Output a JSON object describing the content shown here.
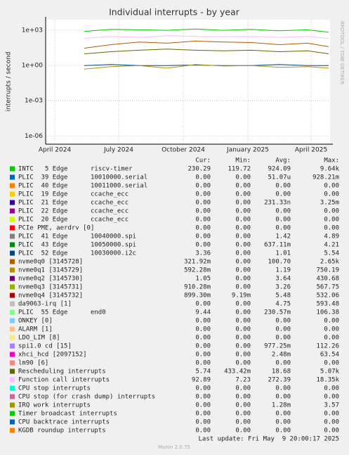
{
  "chart_data": {
    "type": "line",
    "title": "Individual interrupts - by year",
    "ylabel": "interrupts / second",
    "watermark": "RRDTOOL / TOBI OETIKER",
    "log_scale": true,
    "grid": true,
    "ylim": [
      2e-07,
      8000
    ],
    "yticks": [
      {
        "value": 1000,
        "label": "1e+03"
      },
      {
        "value": 1,
        "label": "1e+00"
      },
      {
        "value": 0.001,
        "label": "1e-03"
      },
      {
        "value": 1e-06,
        "label": "1e-06"
      }
    ],
    "xlim": [
      -13,
      392
    ],
    "xticks": [
      {
        "value": 0,
        "label": "April 2024"
      },
      {
        "value": 91,
        "label": "July 2024"
      },
      {
        "value": 183,
        "label": "October 2024"
      },
      {
        "value": 275,
        "label": "January 2025"
      },
      {
        "value": 365,
        "label": "April 2025"
      }
    ],
    "x": [
      42,
      80,
      120,
      160,
      200,
      240,
      280,
      320,
      360,
      390
    ],
    "legend_columns": [
      "Cur:",
      "Min:",
      "Avg:",
      "Max:"
    ],
    "series": [
      {
        "name": "INTC   5 Edge      riscv-timer",
        "color": "#00CC00",
        "stats": [
          "230.29",
          "119.72",
          "924.09",
          "9.64k"
        ],
        "values": [
          800,
          1200,
          1100,
          1000,
          1300,
          1000,
          1200,
          900,
          1100,
          700
        ]
      },
      {
        "name": "PLIC  39 Edge      10010000.serial",
        "color": "#0066B3",
        "stats": [
          "0.00",
          "0.00",
          "51.07u",
          "928.21m"
        ]
      },
      {
        "name": "PLIC  40 Edge      10011000.serial",
        "color": "#FF8000",
        "stats": [
          "0.00",
          "0.00",
          "0.00",
          "0.00"
        ]
      },
      {
        "name": "PLIC  19 Edge      ccache_ecc",
        "color": "#FFCC00",
        "stats": [
          "0.00",
          "0.00",
          "0.00",
          "0.00"
        ]
      },
      {
        "name": "PLIC  21 Edge      ccache_ecc",
        "color": "#330099",
        "stats": [
          "0.00",
          "0.00",
          "231.33n",
          "3.25m"
        ]
      },
      {
        "name": "PLIC  22 Edge      ccache_ecc",
        "color": "#990099",
        "stats": [
          "0.00",
          "0.00",
          "0.00",
          "0.00"
        ]
      },
      {
        "name": "PLIC  20 Edge      ccache_ecc",
        "color": "#CCFF00",
        "stats": [
          "0.00",
          "0.00",
          "0.00",
          "0.00"
        ]
      },
      {
        "name": "PCIe PME, aerdrv [0]",
        "color": "#FF0000",
        "stats": [
          "0.00",
          "0.00",
          "0.00",
          "0.00"
        ]
      },
      {
        "name": "PLIC  41 Edge      10040000.spi",
        "color": "#808080",
        "stats": [
          "0.00",
          "0.00",
          "1.42",
          "4.89"
        ]
      },
      {
        "name": "PLIC  43 Edge      10050000.spi",
        "color": "#008F00",
        "stats": [
          "0.00",
          "0.00",
          "637.11m",
          "4.21"
        ]
      },
      {
        "name": "PLIC  52 Edge      10030000.i2c",
        "color": "#00487D",
        "stats": [
          "3.36",
          "0.00",
          "1.01",
          "5.54"
        ],
        "values": [
          1,
          1.2,
          1,
          1,
          1.1,
          1,
          1,
          1.2,
          1,
          1
        ]
      },
      {
        "name": "nvme0q0 [3145728]",
        "color": "#B35A00",
        "stats": [
          "321.92m",
          "0.00",
          "100.70",
          "2.65k"
        ],
        "values": [
          30,
          60,
          100,
          80,
          120,
          100,
          90,
          60,
          80,
          40
        ]
      },
      {
        "name": "nvme0q1 [3145729]",
        "color": "#B38F00",
        "stats": [
          "592.28m",
          "0.00",
          "1.19",
          "750.19"
        ],
        "values": [
          0.5,
          0.8,
          1,
          0.6,
          1.2,
          0.9,
          1,
          0.7,
          0.8,
          0.6
        ]
      },
      {
        "name": "nvme0q2 [3145730]",
        "color": "#6B006B",
        "stats": [
          "1.05",
          "0.00",
          "3.64",
          "430.68"
        ]
      },
      {
        "name": "nvme0q3 [3145731]",
        "color": "#8FB300",
        "stats": [
          "910.28m",
          "0.00",
          "3.26",
          "567.75"
        ]
      },
      {
        "name": "nvme0q4 [3145732]",
        "color": "#B30000",
        "stats": [
          "899.30m",
          "9.19m",
          "5.48",
          "532.06"
        ]
      },
      {
        "name": "da9063-irq [1]",
        "color": "#BEBEBE",
        "stats": [
          "0.00",
          "0.00",
          "4.75",
          "593.48"
        ]
      },
      {
        "name": "PLIC  55 Edge      end0",
        "color": "#80FF80",
        "stats": [
          "9.44",
          "0.00",
          "230.57m",
          "106.38"
        ]
      },
      {
        "name": "ONKEY [0]",
        "color": "#80C9FF",
        "stats": [
          "0.00",
          "0.00",
          "0.00",
          "0.00"
        ]
      },
      {
        "name": "ALARM [1]",
        "color": "#FFC080",
        "stats": [
          "0.00",
          "0.00",
          "0.00",
          "0.00"
        ]
      },
      {
        "name": "LDO_LIM [8]",
        "color": "#FFE680",
        "stats": [
          "0.00",
          "0.00",
          "0.00",
          "0.00"
        ]
      },
      {
        "name": "spi1.0 cd [15]",
        "color": "#AA80FF",
        "stats": [
          "0.00",
          "0.00",
          "977.25m",
          "112.26"
        ]
      },
      {
        "name": "xhci_hcd [2097152]",
        "color": "#EE00CC",
        "stats": [
          "0.00",
          "0.00",
          "2.48m",
          "63.54"
        ]
      },
      {
        "name": "lm90 [6]",
        "color": "#FF8080",
        "stats": [
          "0.00",
          "0.00",
          "0.00",
          "0.00"
        ]
      },
      {
        "name": "Rescheduling interrupts",
        "color": "#666600",
        "stats": [
          "5.74",
          "433.42m",
          "18.68",
          "5.07k"
        ],
        "values": [
          10,
          15,
          20,
          25,
          20,
          18,
          20,
          15,
          18,
          10
        ]
      },
      {
        "name": "Function call interrupts",
        "color": "#FFBFFF",
        "stats": [
          "92.89",
          "7.23",
          "272.39",
          "18.35k"
        ],
        "values": [
          200,
          300,
          250,
          350,
          300,
          280,
          300,
          250,
          300,
          200
        ]
      },
      {
        "name": "CPU stop interrupts",
        "color": "#00FFCC",
        "stats": [
          "0.00",
          "0.00",
          "0.00",
          "0.00"
        ]
      },
      {
        "name": "CPU stop (for crash dump) interrupts",
        "color": "#CC6699",
        "stats": [
          "0.00",
          "0.00",
          "0.00",
          "0.00"
        ]
      },
      {
        "name": "IRQ work interrupts",
        "color": "#999900",
        "stats": [
          "0.00",
          "0.00",
          "1.28m",
          "3.57"
        ]
      },
      {
        "name": "Timer broadcast interrupts",
        "color": "#00CC00",
        "stats": [
          "0.00",
          "0.00",
          "0.00",
          "0.00"
        ]
      },
      {
        "name": "CPU backtrace interrupts",
        "color": "#0066B3",
        "stats": [
          "0.00",
          "0.00",
          "0.00",
          "0.00"
        ]
      },
      {
        "name": "KGDB roundup interrupts",
        "color": "#FF8000",
        "stats": [
          "0.00",
          "0.00",
          "0.00",
          "0.00"
        ]
      }
    ],
    "last_update": "Last update: Fri May  9 20:00:17 2025",
    "footer": "Munin 2.0.75"
  }
}
